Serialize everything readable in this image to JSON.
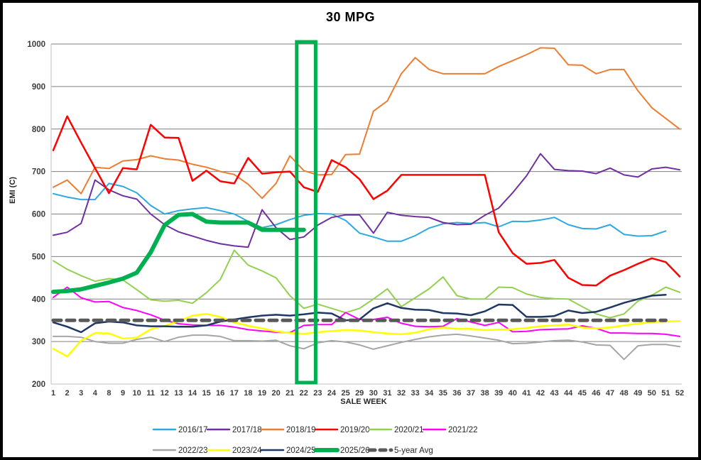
{
  "title": "30 MPG",
  "chart_data": {
    "type": "line",
    "title": "30 MPG",
    "xlabel": "SALE WEEK",
    "ylabel": "EMI (C)",
    "ylim": [
      200,
      1000
    ],
    "ytick_step": 100,
    "grid": true,
    "legend_position": "bottom",
    "highlight_box": {
      "from_week": 22,
      "to_week": 23,
      "color": "#00B050",
      "note": "full-height rectangle over weeks 22-23"
    },
    "categories": [
      1,
      2,
      3,
      4,
      8,
      9,
      10,
      11,
      12,
      13,
      14,
      15,
      16,
      17,
      18,
      19,
      20,
      21,
      22,
      23,
      24,
      25,
      29,
      30,
      31,
      32,
      33,
      34,
      35,
      36,
      37,
      38,
      39,
      40,
      41,
      42,
      43,
      44,
      45,
      46,
      47,
      48,
      49,
      50,
      51,
      52
    ],
    "series": [
      {
        "name": "2016/17",
        "color": "#2EA9E0",
        "width": 2,
        "values": [
          648,
          640,
          634,
          634,
          672,
          665,
          650,
          620,
          600,
          608,
          612,
          615,
          608,
          600,
          583,
          568,
          575,
          587,
          597,
          601,
          600,
          585,
          555,
          546,
          536,
          536,
          549,
          567,
          577,
          580,
          578,
          580,
          570,
          583,
          582,
          586,
          592,
          575,
          566,
          565,
          575,
          552,
          548,
          549,
          560,
          null
        ]
      },
      {
        "name": "2017/18",
        "color": "#7030A0",
        "width": 2,
        "values": [
          550,
          557,
          578,
          680,
          657,
          643,
          635,
          600,
          575,
          558,
          548,
          538,
          530,
          525,
          522,
          610,
          568,
          540,
          546,
          574,
          592,
          598,
          598,
          555,
          604,
          597,
          594,
          592,
          580,
          575,
          576,
          597,
          614,
          650,
          690,
          742,
          705,
          702,
          701,
          695,
          708,
          692,
          687,
          706,
          710,
          704
        ]
      },
      {
        "name": "2018/19",
        "color": "#ED7D31",
        "width": 2,
        "values": [
          663,
          680,
          648,
          710,
          707,
          725,
          728,
          737,
          730,
          727,
          717,
          710,
          700,
          693,
          670,
          637,
          672,
          737,
          702,
          692,
          693,
          740,
          741,
          842,
          866,
          930,
          968,
          940,
          930,
          930,
          930,
          930,
          947,
          961,
          975,
          991,
          990,
          951,
          950,
          930,
          940,
          940,
          890,
          850,
          825,
          800
        ]
      },
      {
        "name": "2019/20",
        "color": "#FF0000",
        "width": 2.5,
        "values": [
          750,
          830,
          768,
          708,
          649,
          708,
          705,
          810,
          780,
          779,
          678,
          702,
          677,
          672,
          732,
          695,
          698,
          700,
          663,
          652,
          727,
          710,
          682,
          635,
          655,
          692,
          692,
          692,
          692,
          692,
          692,
          692,
          557,
          508,
          483,
          485,
          492,
          450,
          433,
          432,
          455,
          468,
          483,
          496,
          487,
          453
        ]
      },
      {
        "name": "2020/21",
        "color": "#92D050",
        "width": 2,
        "values": [
          490,
          470,
          455,
          442,
          448,
          445,
          422,
          398,
          395,
          397,
          390,
          415,
          446,
          515,
          480,
          466,
          450,
          408,
          378,
          388,
          378,
          368,
          378,
          400,
          424,
          382,
          403,
          424,
          452,
          408,
          400,
          400,
          428,
          427,
          412,
          404,
          401,
          400,
          382,
          365,
          356,
          365,
          395,
          409,
          428,
          416
        ]
      },
      {
        "name": "2021/22",
        "color": "#FF00FF",
        "width": 2,
        "values": [
          404,
          428,
          403,
          393,
          394,
          380,
          373,
          363,
          350,
          342,
          339,
          338,
          338,
          334,
          328,
          325,
          322,
          321,
          338,
          340,
          340,
          368,
          352,
          352,
          357,
          343,
          336,
          335,
          336,
          354,
          346,
          338,
          345,
          323,
          324,
          328,
          329,
          330,
          337,
          331,
          320,
          320,
          319,
          319,
          317,
          312
        ]
      },
      {
        "name": "2022/23",
        "color": "#A6A6A6",
        "width": 2,
        "values": [
          312,
          312,
          310,
          300,
          296,
          296,
          305,
          310,
          300,
          310,
          315,
          315,
          312,
          302,
          302,
          301,
          303,
          290,
          283,
          297,
          302,
          299,
          292,
          282,
          290,
          298,
          305,
          311,
          315,
          317,
          313,
          308,
          303,
          295,
          296,
          299,
          302,
          303,
          299,
          292,
          291,
          258,
          290,
          293,
          293,
          288
        ]
      },
      {
        "name": "2023/24",
        "color": "#FFFF00",
        "width": 2.5,
        "values": [
          283,
          265,
          302,
          320,
          319,
          307,
          309,
          329,
          337,
          348,
          361,
          365,
          358,
          345,
          337,
          331,
          324,
          320,
          318,
          322,
          325,
          327,
          326,
          322,
          319,
          317,
          321,
          329,
          333,
          330,
          330,
          327,
          328,
          329,
          332,
          336,
          338,
          340,
          333,
          331,
          333,
          338,
          342,
          346,
          347,
          348
        ]
      },
      {
        "name": "2024/25",
        "color": "#1F3864",
        "width": 2.5,
        "values": [
          345,
          335,
          322,
          343,
          347,
          345,
          338,
          336,
          336,
          335,
          335,
          338,
          347,
          352,
          357,
          361,
          363,
          361,
          364,
          368,
          366,
          350,
          352,
          378,
          390,
          379,
          375,
          374,
          367,
          366,
          362,
          371,
          387,
          386,
          358,
          358,
          360,
          373,
          367,
          370,
          380,
          391,
          400,
          408,
          410,
          null
        ]
      },
      {
        "name": "2025/26",
        "color": "#00B050",
        "width": 6,
        "values": [
          417,
          419,
          423,
          431,
          439,
          448,
          462,
          510,
          574,
          598,
          600,
          582,
          580,
          580,
          580,
          563,
          563,
          563,
          563,
          null,
          null,
          null,
          null,
          null,
          null,
          null,
          null,
          null,
          null,
          null,
          null,
          null,
          null,
          null,
          null,
          null,
          null,
          null,
          null,
          null,
          null,
          null,
          null,
          null,
          null,
          null
        ]
      },
      {
        "name": "5-year Avg",
        "color": "#595959",
        "width": 5,
        "dash": "11 8",
        "values": [
          350,
          350,
          350,
          350,
          350,
          350,
          350,
          350,
          350,
          350,
          350,
          350,
          350,
          350,
          350,
          350,
          350,
          350,
          350,
          350,
          350,
          350,
          350,
          350,
          350,
          350,
          350,
          350,
          350,
          350,
          350,
          350,
          350,
          350,
          350,
          350,
          350,
          350,
          350,
          350,
          350,
          350,
          350,
          350,
          350,
          null
        ]
      }
    ]
  }
}
